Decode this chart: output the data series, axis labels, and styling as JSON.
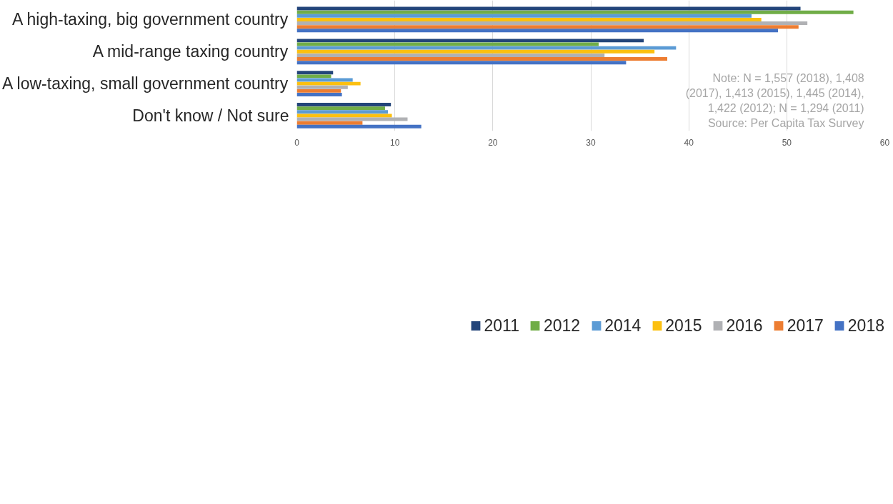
{
  "chart_data": {
    "type": "bar",
    "orientation": "horizontal",
    "categories": [
      "A high-taxing, big government country",
      "A mid-range taxing country",
      "A low-taxing, small government country",
      "Don't know / Not sure"
    ],
    "series": [
      {
        "name": "2011",
        "color": "#23457a",
        "values": [
          51.4,
          35.4,
          3.7,
          9.6
        ]
      },
      {
        "name": "2012",
        "color": "#70ad47",
        "values": [
          56.8,
          30.8,
          3.5,
          9.0
        ]
      },
      {
        "name": "2014",
        "color": "#5b9bd5",
        "values": [
          46.4,
          38.7,
          5.7,
          9.3
        ]
      },
      {
        "name": "2015",
        "color": "#fcc010",
        "values": [
          47.4,
          36.5,
          6.5,
          9.7
        ]
      },
      {
        "name": "2016",
        "color": "#b0b1b4",
        "values": [
          52.1,
          31.4,
          5.2,
          11.3
        ]
      },
      {
        "name": "2017",
        "color": "#ed7d31",
        "values": [
          51.2,
          37.8,
          4.5,
          6.7
        ]
      },
      {
        "name": "2018",
        "color": "#4472c4",
        "values": [
          49.1,
          33.6,
          4.6,
          12.7
        ]
      }
    ],
    "xlim": [
      0,
      60
    ],
    "xticks": [
      0,
      10,
      20,
      30,
      40,
      50,
      60
    ],
    "grid": "x",
    "legend": "bottom",
    "annotations": [
      "Note: N = 1,557 (2018), 1,408\n(2017), 1,413 (2015), 1,445 (2014),\n1,422 (2012); N = 1,294 (2011)\nSource: Per Capita Tax Survey"
    ]
  }
}
